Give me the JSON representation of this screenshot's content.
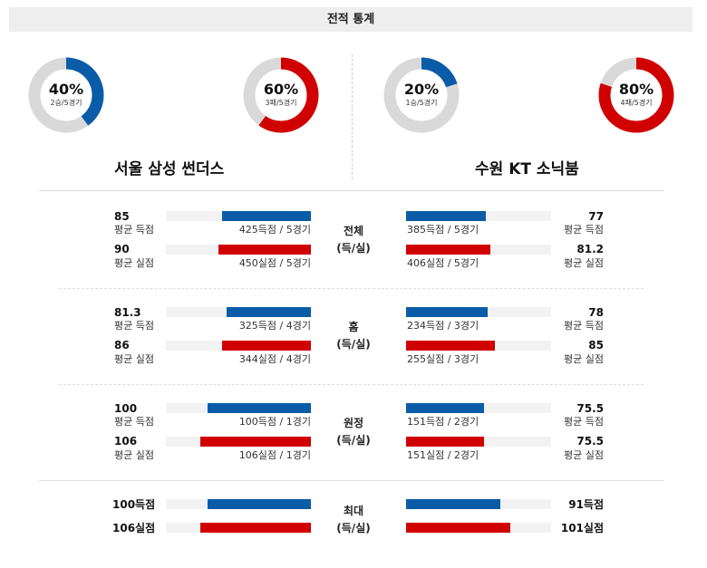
{
  "header": {
    "title": "전적 통계"
  },
  "teams": {
    "home": {
      "name": "서울 삼성 썬더스"
    },
    "away": {
      "name": "수원 KT 소닉붐"
    }
  },
  "donuts": [
    {
      "pct_label": "40%",
      "record": "2승/5경기",
      "fraction": 0.4,
      "color": "#0a5ca8"
    },
    {
      "pct_label": "60%",
      "record": "3패/5경기",
      "fraction": 0.6,
      "color": "#d10000"
    },
    {
      "pct_label": "20%",
      "record": "1승/5경기",
      "fraction": 0.2,
      "color": "#0a5ca8"
    },
    {
      "pct_label": "80%",
      "record": "4패/5경기",
      "fraction": 0.8,
      "color": "#d10000"
    }
  ],
  "colors": {
    "score": "#0a5ca8",
    "concede": "#d10000",
    "donut_track": "#d9d9d9"
  },
  "sections": [
    {
      "category": [
        "전체",
        "(득/실)"
      ],
      "home": {
        "score": {
          "value": "85",
          "label": "평균 득점",
          "caption": "425득점 / 5경기",
          "fill": 0.61
        },
        "concede": {
          "value": "90",
          "label": "평균 실점",
          "caption": "450실점 / 5경기",
          "fill": 0.64
        }
      },
      "away": {
        "score": {
          "value": "77",
          "label": "평균 득점",
          "caption": "385득점 / 5경기",
          "fill": 0.55
        },
        "concede": {
          "value": "81.2",
          "label": "평균 실점",
          "caption": "406실점 / 5경기",
          "fill": 0.58
        }
      }
    },
    {
      "category": [
        "홈",
        "(득/실)"
      ],
      "home": {
        "score": {
          "value": "81.3",
          "label": "평균 득점",
          "caption": "325득점 / 4경기",
          "fill": 0.58
        },
        "concede": {
          "value": "86",
          "label": "평균 실점",
          "caption": "344실점 / 4경기",
          "fill": 0.61
        }
      },
      "away": {
        "score": {
          "value": "78",
          "label": "평균 득점",
          "caption": "234득점 / 3경기",
          "fill": 0.56
        },
        "concede": {
          "value": "85",
          "label": "평균 실점",
          "caption": "255실점 / 3경기",
          "fill": 0.61
        }
      }
    },
    {
      "category": [
        "원정",
        "(득/실)"
      ],
      "home": {
        "score": {
          "value": "100",
          "label": "평균 득점",
          "caption": "100득점 / 1경기",
          "fill": 0.71
        },
        "concede": {
          "value": "106",
          "label": "평균 실점",
          "caption": "106실점 / 1경기",
          "fill": 0.76
        }
      },
      "away": {
        "score": {
          "value": "75.5",
          "label": "평균 득점",
          "caption": "151득점 / 2경기",
          "fill": 0.54
        },
        "concede": {
          "value": "75.5",
          "label": "평균 실점",
          "caption": "151실점 / 2경기",
          "fill": 0.54
        }
      }
    }
  ],
  "max": {
    "category": [
      "최대",
      "(득/실)"
    ],
    "home": {
      "score": {
        "value": "100득점",
        "fill": 0.71
      },
      "concede": {
        "value": "106실점",
        "fill": 0.76
      }
    },
    "away": {
      "score": {
        "value": "91득점",
        "fill": 0.65
      },
      "concede": {
        "value": "101실점",
        "fill": 0.72
      }
    }
  }
}
